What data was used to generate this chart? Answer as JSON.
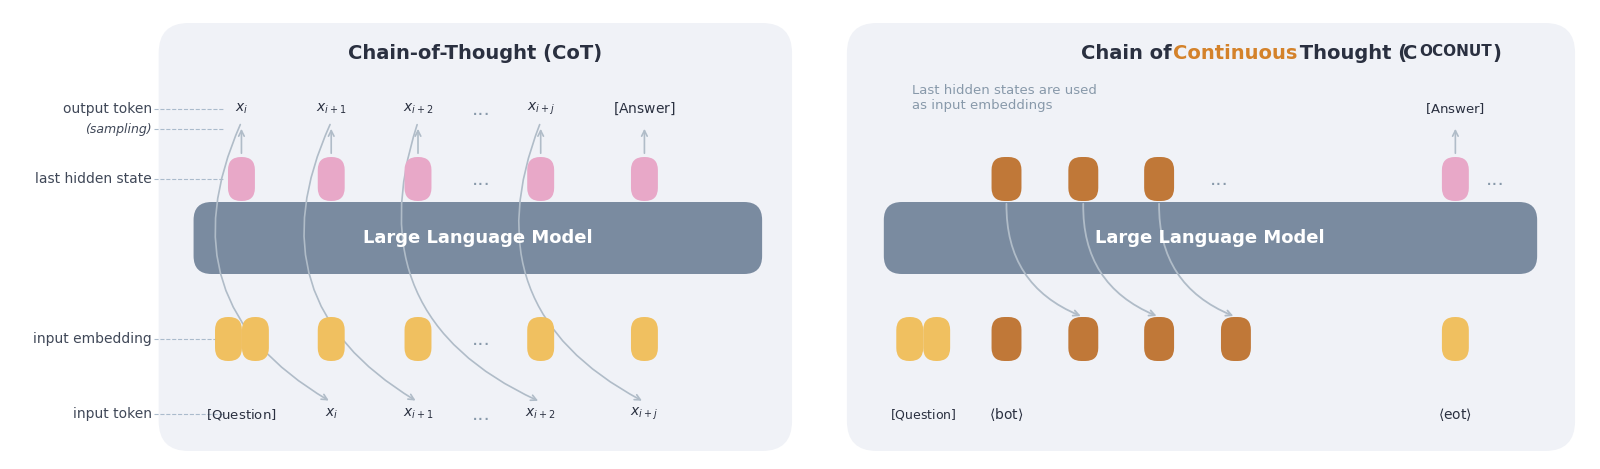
{
  "bg_color": "#ffffff",
  "panel_bg": "#f0f2f7",
  "llm_box_color": "#7a8ba0",
  "llm_text_color": "#ffffff",
  "pink_color": "#e8a8c8",
  "yellow_color": "#f0c060",
  "orange_color": "#c07830",
  "dark_text": "#404858",
  "gray_text": "#8899aa",
  "orange_title": "#d4822a",
  "arrow_color": "#b0bcc8",
  "cot_title": "Chain-of-Thought (CoT)",
  "coconut_title_parts": [
    "Chain of ",
    "Continuous",
    " Thought (",
    "Coconut",
    ")"
  ],
  "coconut_title_colors": [
    "black",
    "#d4822a",
    "black",
    "black",
    "black"
  ],
  "coconut_subtitle": "Last hidden states are used\nas input embeddings",
  "llm_label": "Large Language Model",
  "left_labels": [
    "output token",
    "(sampling)",
    "last hidden state",
    "input embedding",
    "input token"
  ],
  "left_label_styles": [
    "normal",
    "italic",
    "normal",
    "normal",
    "normal"
  ],
  "cot_top_tokens": [
    "x_i",
    "x_{i+1}",
    "x_{i+2}",
    "x_{i+j}",
    "[Answer]"
  ],
  "cot_bottom_tokens": [
    "[Question]",
    "x_i",
    "x_{i+1}",
    "x_{i+2}",
    "x_{i+j}"
  ],
  "coconut_top_tokens": [
    "[Answer]"
  ],
  "coconut_bottom_tokens": [
    "[Question]",
    "<bot>",
    "<eot>"
  ]
}
